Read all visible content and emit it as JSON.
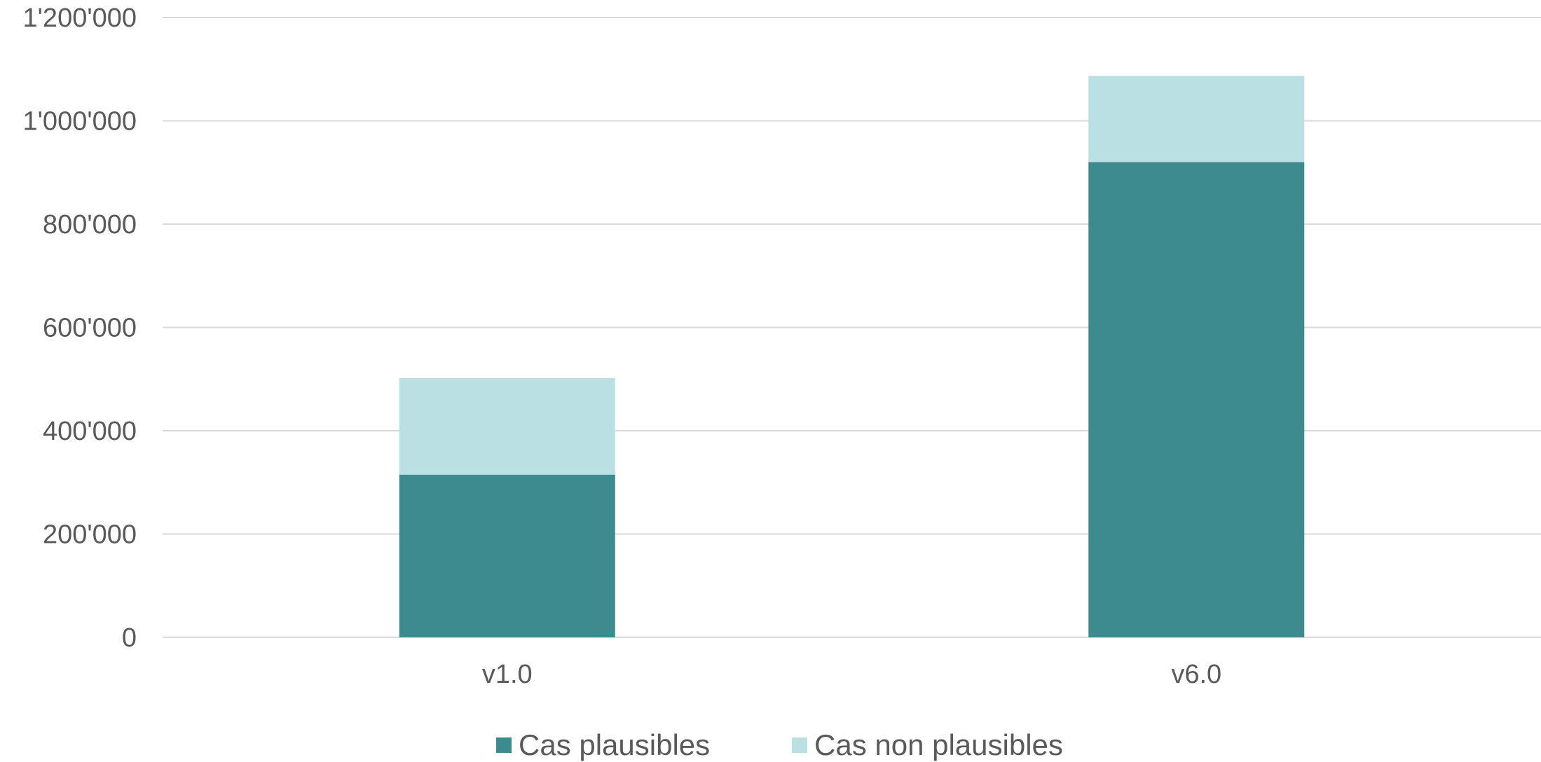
{
  "chart_data": {
    "type": "bar",
    "stacked": true,
    "categories": [
      "v1.0",
      "v6.0"
    ],
    "series": [
      {
        "name": "Cas plausibles",
        "values": [
          315000,
          920000
        ],
        "color": "#3d8b8f"
      },
      {
        "name": "Cas non plausibles",
        "values": [
          187000,
          167000
        ],
        "color": "#bae0e3"
      }
    ],
    "ylim": [
      0,
      1200000
    ],
    "yticks": [
      0,
      200000,
      400000,
      600000,
      800000,
      1000000,
      1200000
    ],
    "ytick_labels": [
      "0",
      "200'000",
      "400'000",
      "600'000",
      "800'000",
      "1'000'000",
      "1'200'000"
    ],
    "grid": true,
    "legend": "bottom-center",
    "title": "",
    "xlabel": "",
    "ylabel": ""
  }
}
